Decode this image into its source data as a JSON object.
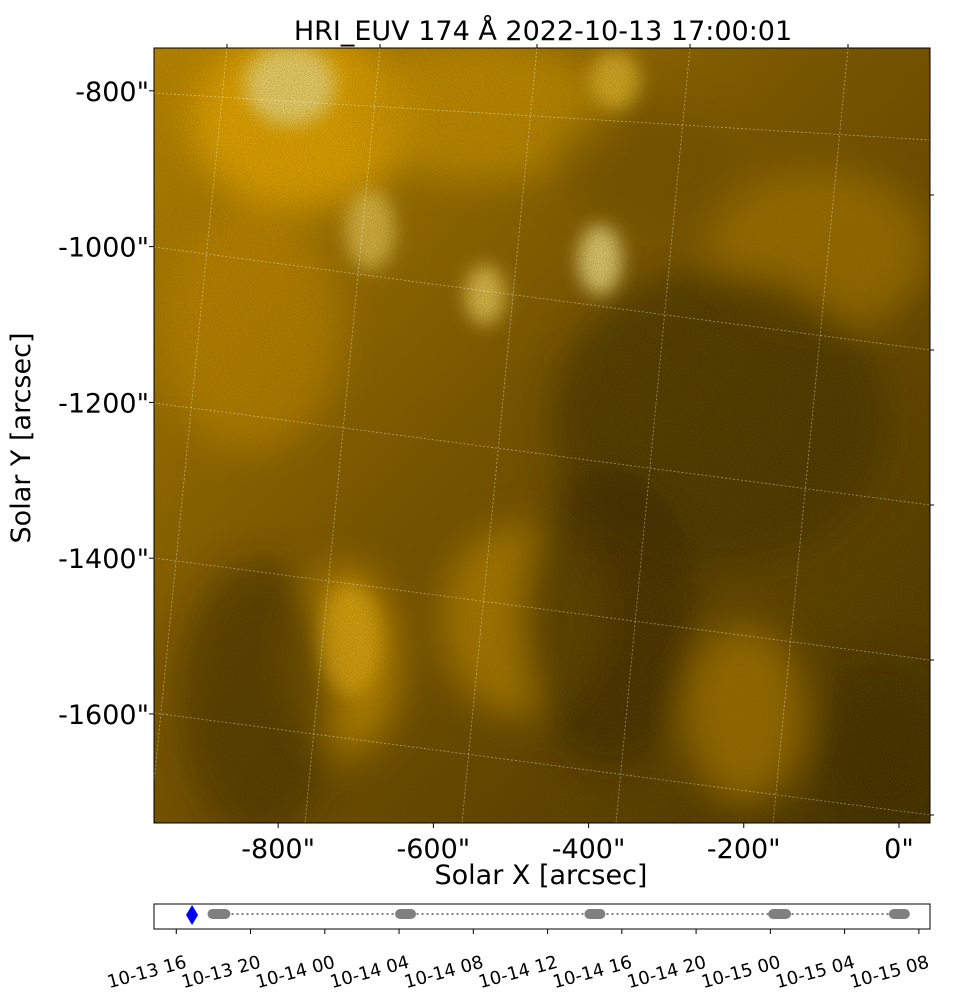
{
  "chart_data": [
    {
      "type": "heatmap",
      "title": "HRI_EUV 174 Å 2022-10-13 17:00:01",
      "xlabel": "Solar X [arcsec]",
      "ylabel": "Solar Y [arcsec]",
      "x_ticks": [
        "-800\"",
        "-600\"",
        "-400\"",
        "-200\"",
        "0\""
      ],
      "y_ticks": [
        "-800\"",
        "-1000\"",
        "-1200\"",
        "-1400\"",
        "-1600\""
      ],
      "x_tick_values": [
        -800,
        -600,
        -400,
        -200,
        0
      ],
      "y_tick_values": [
        -800,
        -1000,
        -1200,
        -1400,
        -1600
      ],
      "xlim": [
        -960,
        40
      ],
      "ylim": [
        -1740,
        -745
      ],
      "grid": true,
      "colormap": "solar orbiter hri_euv 174 (black to gold)",
      "colors": {
        "dark": "#2a1c00",
        "mid": "#b07800",
        "bright": "#ffc800",
        "highlight": "#fff2b0"
      }
    },
    {
      "type": "scatter",
      "title": "",
      "xlabel": "",
      "ylabel": "",
      "x_ticks": [
        "10-13 16",
        "10-13 20",
        "10-14 00",
        "10-14 04",
        "10-14 08",
        "10-14 12",
        "10-14 16",
        "10-14 20",
        "10-15 00",
        "10-15 04",
        "10-15 08"
      ],
      "x_tick_values": [
        0,
        4,
        8,
        12,
        16,
        20,
        24,
        28,
        32,
        36,
        40
      ],
      "xlim": [
        -1.2,
        40.6
      ],
      "series": [
        {
          "kind": "cluster",
          "x_start": 1.9,
          "x_end": 2.7
        },
        {
          "kind": "cluster",
          "x_start": 12.0,
          "x_end": 12.7
        },
        {
          "kind": "cluster",
          "x_start": 22.2,
          "x_end": 22.9
        },
        {
          "kind": "cluster",
          "x_start": 32.1,
          "x_end": 32.9
        },
        {
          "kind": "cluster",
          "x_start": 38.6,
          "x_end": 39.3
        }
      ],
      "current_time": 0.85,
      "colors": {
        "points": "#808080",
        "current": "#0000ff"
      }
    }
  ]
}
